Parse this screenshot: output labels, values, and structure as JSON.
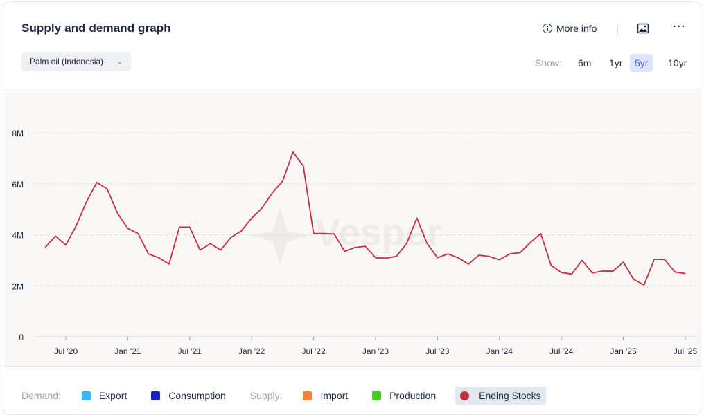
{
  "header": {
    "title": "Supply and demand graph",
    "commodity": "Palm oil (Indonesia)",
    "more_info": "More info",
    "show_label": "Show:",
    "ranges": [
      "6m",
      "1yr",
      "5yr",
      "10yr"
    ],
    "active_range": "5yr"
  },
  "legend": {
    "demand_label": "Demand:",
    "supply_label": "Supply:",
    "items": [
      {
        "label": "Export",
        "color": "#38b6f5",
        "shape": "square"
      },
      {
        "label": "Consumption",
        "color": "#1520b8",
        "shape": "square"
      },
      {
        "label": "Import",
        "color": "#fb8133",
        "shape": "square"
      },
      {
        "label": "Production",
        "color": "#3dce1c",
        "shape": "square"
      },
      {
        "label": "Ending Stocks",
        "color": "#cc2a3d",
        "shape": "circle",
        "active": true
      }
    ]
  },
  "chart_data": {
    "type": "line",
    "watermark": "Vesper",
    "y_ticks": [
      "0",
      "2M",
      "4M",
      "6M",
      "8M"
    ],
    "ylim": [
      0,
      8000000
    ],
    "x_ticks": [
      {
        "label": "Jul '20",
        "date": "2020-07"
      },
      {
        "label": "Jan '21",
        "date": "2021-01"
      },
      {
        "label": "Jul '21",
        "date": "2021-07"
      },
      {
        "label": "Jan '22",
        "date": "2022-01"
      },
      {
        "label": "Jul '22",
        "date": "2022-07"
      },
      {
        "label": "Jan '23",
        "date": "2023-01"
      },
      {
        "label": "Jul '23",
        "date": "2023-07"
      },
      {
        "label": "Jan '24",
        "date": "2024-01"
      },
      {
        "label": "Jul '24",
        "date": "2024-07"
      },
      {
        "label": "Jan '25",
        "date": "2025-01"
      },
      {
        "label": "Jul '25",
        "date": "2025-07"
      }
    ],
    "grid": true,
    "series": [
      {
        "name": "Ending Stocks",
        "color": "#cc2a3d",
        "x": [
          "2020-05",
          "2020-06",
          "2020-07",
          "2020-08",
          "2020-09",
          "2020-10",
          "2020-11",
          "2020-12",
          "2021-01",
          "2021-02",
          "2021-03",
          "2021-04",
          "2021-05",
          "2021-06",
          "2021-07",
          "2021-08",
          "2021-09",
          "2021-10",
          "2021-11",
          "2021-12",
          "2022-01",
          "2022-02",
          "2022-03",
          "2022-04",
          "2022-05",
          "2022-06",
          "2022-07",
          "2022-08",
          "2022-09",
          "2022-10",
          "2022-11",
          "2022-12",
          "2023-01",
          "2023-02",
          "2023-03",
          "2023-04",
          "2023-05",
          "2023-06",
          "2023-07",
          "2023-08",
          "2023-09",
          "2023-10",
          "2023-11",
          "2023-12",
          "2024-01",
          "2024-02",
          "2024-03",
          "2024-04",
          "2024-05",
          "2024-06",
          "2024-07",
          "2024-08",
          "2024-09",
          "2024-10",
          "2024-11",
          "2024-12",
          "2025-01",
          "2025-02",
          "2025-03",
          "2025-04",
          "2025-05",
          "2025-06",
          "2025-07"
        ],
        "values": [
          3500000,
          3950000,
          3600000,
          4350000,
          5300000,
          6050000,
          5800000,
          4850000,
          4250000,
          4050000,
          3250000,
          3100000,
          2850000,
          4300000,
          4300000,
          3400000,
          3650000,
          3400000,
          3900000,
          4150000,
          4650000,
          5050000,
          5650000,
          6100000,
          7250000,
          6700000,
          4050000,
          4050000,
          4030000,
          3350000,
          3500000,
          3550000,
          3100000,
          3080000,
          3150000,
          3650000,
          4650000,
          3650000,
          3100000,
          3250000,
          3100000,
          2850000,
          3200000,
          3150000,
          3020000,
          3250000,
          3300000,
          3700000,
          4050000,
          2800000,
          2520000,
          2460000,
          3000000,
          2500000,
          2580000,
          2570000,
          2930000,
          2250000,
          2030000,
          3040000,
          3030000,
          2540000,
          2480000
        ]
      }
    ]
  }
}
